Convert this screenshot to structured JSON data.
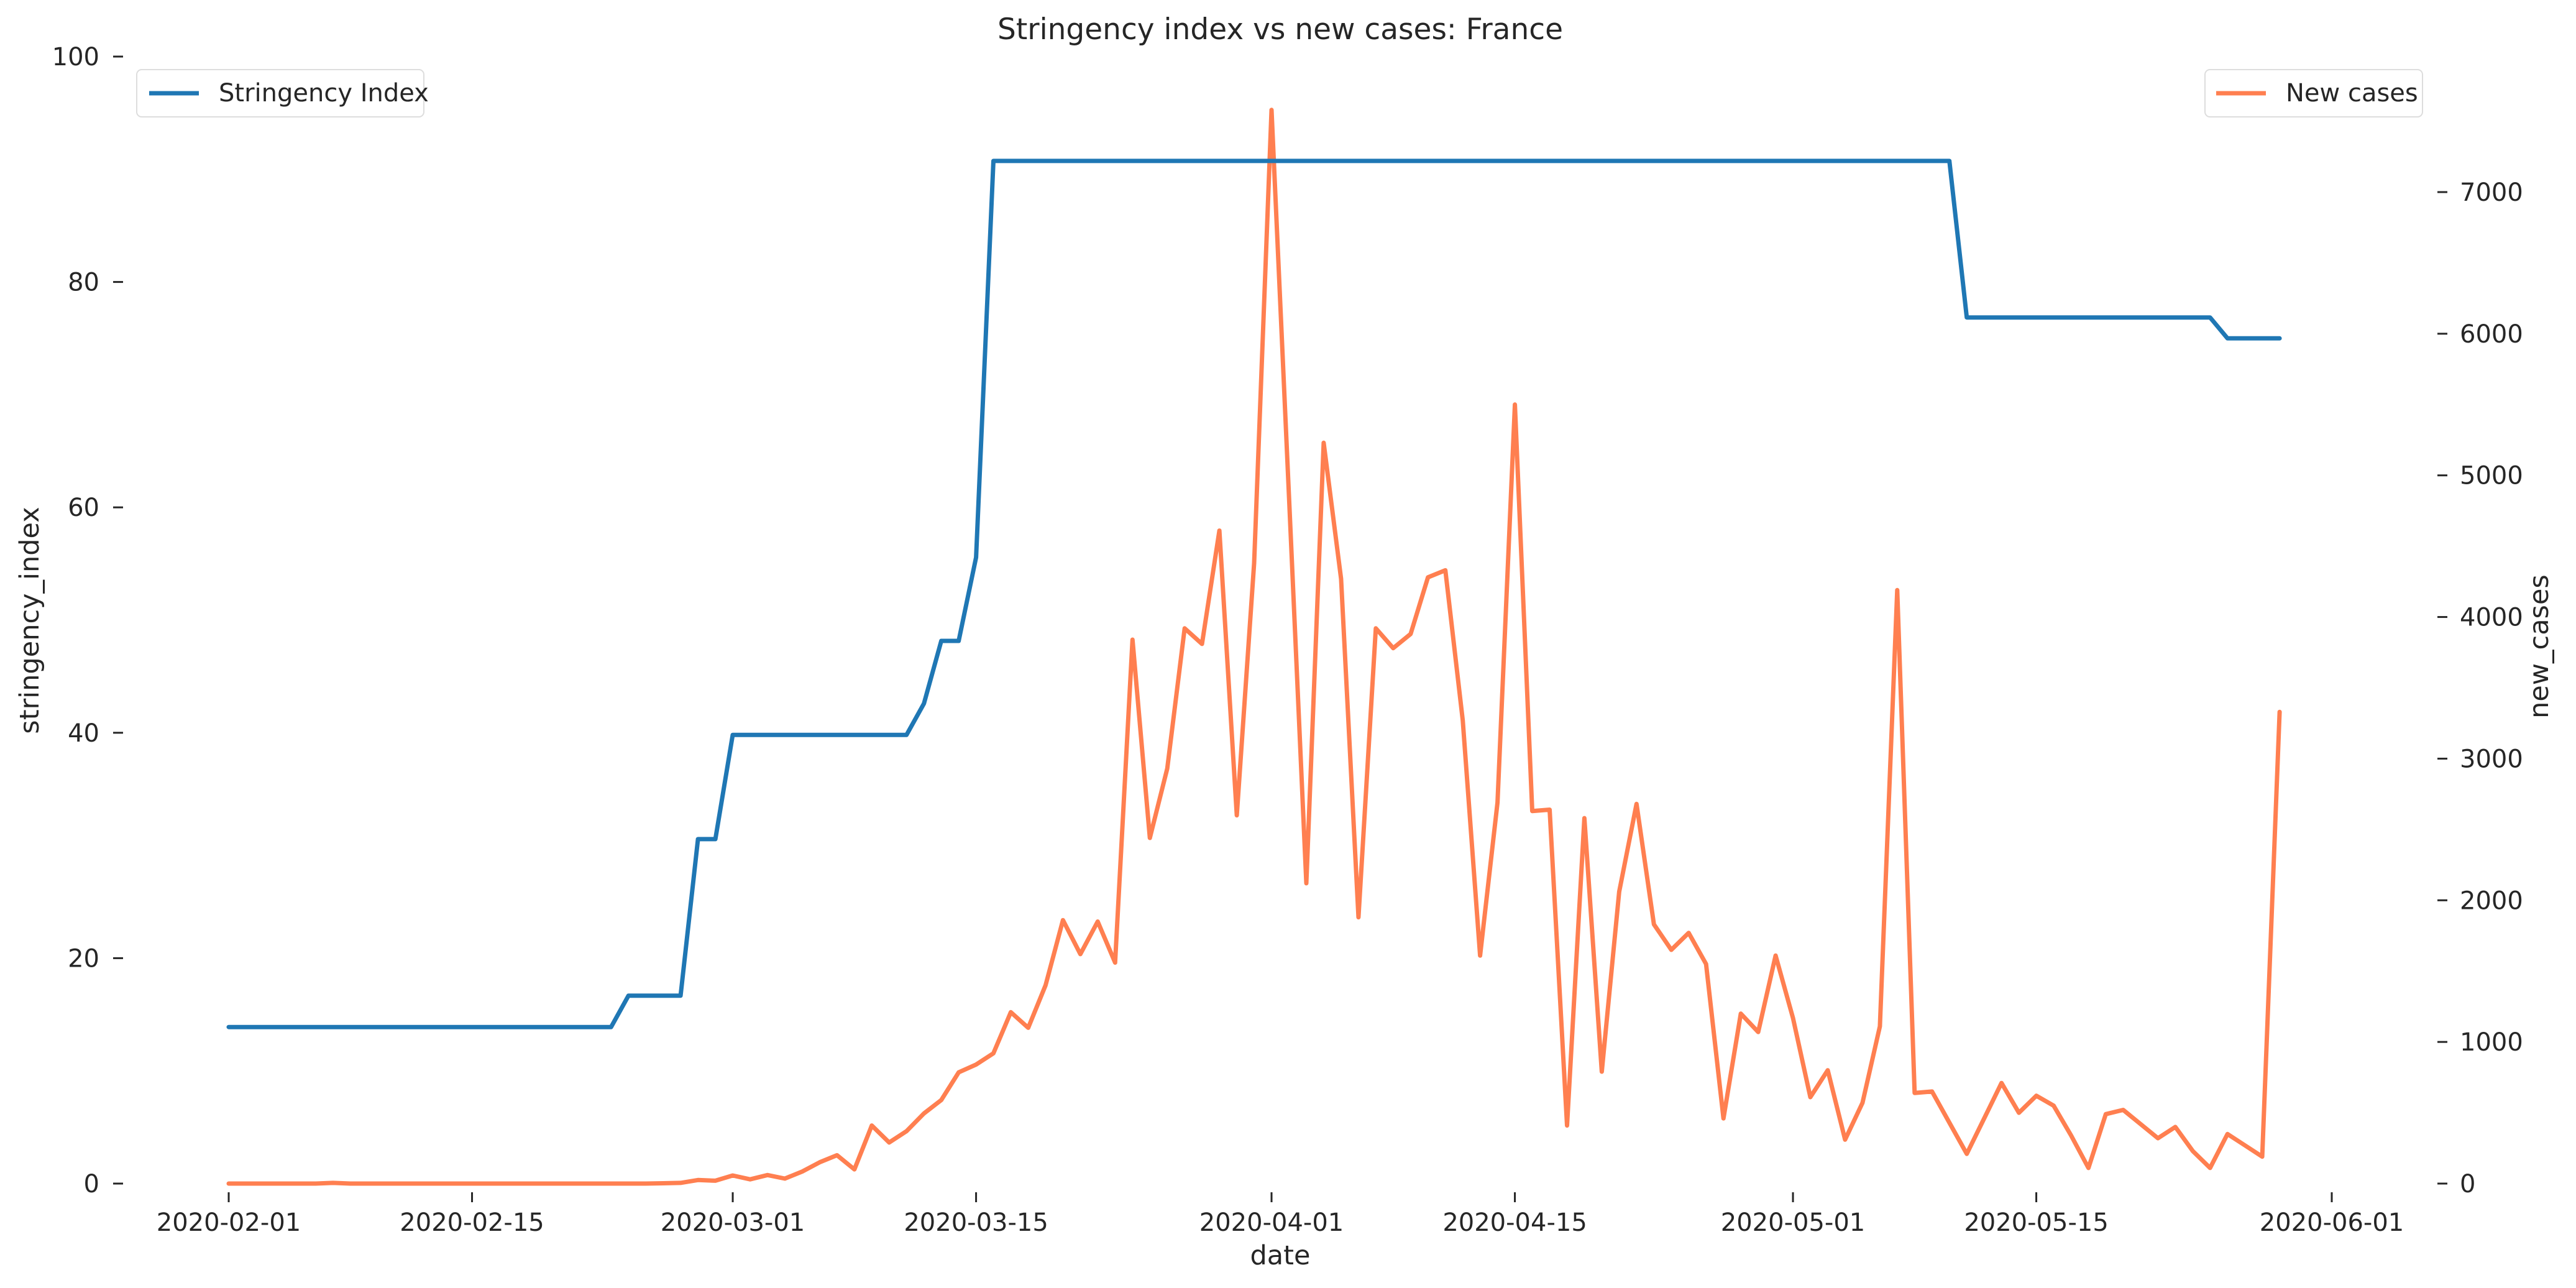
{
  "chart_data": {
    "type": "line",
    "title": "Stringency index vs new cases:  France",
    "xlabel": "date",
    "ylabel_left": "stringency_index",
    "ylabel_right": "new_cases",
    "x_start": "2020-02-01",
    "x_end": "2020-05-29",
    "x_ticks": [
      "2020-02-01",
      "2020-02-15",
      "2020-03-01",
      "2020-03-15",
      "2020-04-01",
      "2020-04-15",
      "2020-05-01",
      "2020-05-15",
      "2020-06-01"
    ],
    "y_left_ticks": [
      0,
      20,
      40,
      60,
      80,
      100
    ],
    "y_left_lim": [
      0,
      100
    ],
    "y_right_ticks": [
      0,
      1000,
      2000,
      3000,
      4000,
      5000,
      6000,
      7000
    ],
    "y_right_lim": [
      0,
      7950
    ],
    "grid": false,
    "colors": {
      "stringency": "#1f77b4",
      "new_cases": "#ff7f50"
    },
    "series": [
      {
        "name": "Stringency Index",
        "axis": "left",
        "legend_position": "top-left",
        "points": [
          [
            "2020-02-01",
            13.89
          ],
          [
            "2020-02-23",
            13.89
          ],
          [
            "2020-02-24",
            16.67
          ],
          [
            "2020-02-27",
            16.67
          ],
          [
            "2020-02-28",
            30.56
          ],
          [
            "2020-02-29",
            30.56
          ],
          [
            "2020-03-01",
            39.81
          ],
          [
            "2020-03-11",
            39.81
          ],
          [
            "2020-03-12",
            42.59
          ],
          [
            "2020-03-13",
            48.15
          ],
          [
            "2020-03-14",
            48.15
          ],
          [
            "2020-03-15",
            55.56
          ],
          [
            "2020-03-16",
            90.74
          ],
          [
            "2020-05-10",
            90.74
          ],
          [
            "2020-05-11",
            76.85
          ],
          [
            "2020-05-25",
            76.85
          ],
          [
            "2020-05-26",
            75.0
          ],
          [
            "2020-05-29",
            75.0
          ]
        ]
      },
      {
        "name": "New cases",
        "axis": "right",
        "legend_position": "top-right",
        "points": [
          [
            "2020-02-01",
            0
          ],
          [
            "2020-02-02",
            0
          ],
          [
            "2020-02-03",
            0
          ],
          [
            "2020-02-04",
            0
          ],
          [
            "2020-02-05",
            0
          ],
          [
            "2020-02-06",
            0
          ],
          [
            "2020-02-07",
            5
          ],
          [
            "2020-02-08",
            0
          ],
          [
            "2020-02-09",
            0
          ],
          [
            "2020-02-10",
            0
          ],
          [
            "2020-02-11",
            0
          ],
          [
            "2020-02-12",
            0
          ],
          [
            "2020-02-13",
            0
          ],
          [
            "2020-02-14",
            0
          ],
          [
            "2020-02-15",
            0
          ],
          [
            "2020-02-16",
            0
          ],
          [
            "2020-02-17",
            0
          ],
          [
            "2020-02-18",
            0
          ],
          [
            "2020-02-19",
            0
          ],
          [
            "2020-02-20",
            0
          ],
          [
            "2020-02-21",
            0
          ],
          [
            "2020-02-22",
            0
          ],
          [
            "2020-02-23",
            0
          ],
          [
            "2020-02-24",
            0
          ],
          [
            "2020-02-25",
            0
          ],
          [
            "2020-02-26",
            2
          ],
          [
            "2020-02-27",
            5
          ],
          [
            "2020-02-28",
            25
          ],
          [
            "2020-02-29",
            20
          ],
          [
            "2020-03-01",
            57
          ],
          [
            "2020-03-02",
            30
          ],
          [
            "2020-03-03",
            60
          ],
          [
            "2020-03-04",
            35
          ],
          [
            "2020-03-05",
            85
          ],
          [
            "2020-03-06",
            150
          ],
          [
            "2020-03-07",
            200
          ],
          [
            "2020-03-08",
            100
          ],
          [
            "2020-03-09",
            410
          ],
          [
            "2020-03-10",
            290
          ],
          [
            "2020-03-11",
            370
          ],
          [
            "2020-03-12",
            495
          ],
          [
            "2020-03-13",
            590
          ],
          [
            "2020-03-14",
            785
          ],
          [
            "2020-03-15",
            840
          ],
          [
            "2020-03-16",
            920
          ],
          [
            "2020-03-17",
            1210
          ],
          [
            "2020-03-18",
            1100
          ],
          [
            "2020-03-19",
            1400
          ],
          [
            "2020-03-20",
            1860
          ],
          [
            "2020-03-21",
            1620
          ],
          [
            "2020-03-22",
            1850
          ],
          [
            "2020-03-23",
            1560
          ],
          [
            "2020-03-24",
            3840
          ],
          [
            "2020-03-25",
            2440
          ],
          [
            "2020-03-26",
            2930
          ],
          [
            "2020-03-27",
            3920
          ],
          [
            "2020-03-28",
            3810
          ],
          [
            "2020-03-29",
            4610
          ],
          [
            "2020-03-30",
            2600
          ],
          [
            "2020-03-31",
            4380
          ],
          [
            "2020-04-01",
            7580
          ],
          [
            "2020-04-02",
            4860
          ],
          [
            "2020-04-03",
            2120
          ],
          [
            "2020-04-04",
            5230
          ],
          [
            "2020-04-05",
            4270
          ],
          [
            "2020-04-06",
            1880
          ],
          [
            "2020-04-07",
            3920
          ],
          [
            "2020-04-08",
            3780
          ],
          [
            "2020-04-09",
            3880
          ],
          [
            "2020-04-10",
            4280
          ],
          [
            "2020-04-11",
            4330
          ],
          [
            "2020-04-12",
            3270
          ],
          [
            "2020-04-13",
            1610
          ],
          [
            "2020-04-14",
            2690
          ],
          [
            "2020-04-15",
            5500
          ],
          [
            "2020-04-16",
            2630
          ],
          [
            "2020-04-17",
            2640
          ],
          [
            "2020-04-18",
            410
          ],
          [
            "2020-04-19",
            2580
          ],
          [
            "2020-04-20",
            790
          ],
          [
            "2020-04-21",
            2060
          ],
          [
            "2020-04-22",
            2680
          ],
          [
            "2020-04-23",
            1830
          ],
          [
            "2020-04-24",
            1650
          ],
          [
            "2020-04-25",
            1770
          ],
          [
            "2020-04-26",
            1550
          ],
          [
            "2020-04-27",
            460
          ],
          [
            "2020-04-28",
            1200
          ],
          [
            "2020-04-29",
            1070
          ],
          [
            "2020-04-30",
            1610
          ],
          [
            "2020-05-01",
            1170
          ],
          [
            "2020-05-02",
            610
          ],
          [
            "2020-05-03",
            800
          ],
          [
            "2020-05-04",
            310
          ],
          [
            "2020-05-05",
            570
          ],
          [
            "2020-05-06",
            1110
          ],
          [
            "2020-05-07",
            4190
          ],
          [
            "2020-05-08",
            640
          ],
          [
            "2020-05-09",
            650
          ],
          [
            "2020-05-10",
            430
          ],
          [
            "2020-05-11",
            210
          ],
          [
            "2020-05-12",
            460
          ],
          [
            "2020-05-13",
            710
          ],
          [
            "2020-05-14",
            500
          ],
          [
            "2020-05-15",
            620
          ],
          [
            "2020-05-16",
            550
          ],
          [
            "2020-05-17",
            340
          ],
          [
            "2020-05-18",
            110
          ],
          [
            "2020-05-19",
            490
          ],
          [
            "2020-05-20",
            520
          ],
          [
            "2020-05-21",
            420
          ],
          [
            "2020-05-22",
            320
          ],
          [
            "2020-05-23",
            400
          ],
          [
            "2020-05-24",
            230
          ],
          [
            "2020-05-25",
            110
          ],
          [
            "2020-05-26",
            350
          ],
          [
            "2020-05-27",
            270
          ],
          [
            "2020-05-28",
            190
          ],
          [
            "2020-05-29",
            3330
          ]
        ]
      }
    ]
  }
}
